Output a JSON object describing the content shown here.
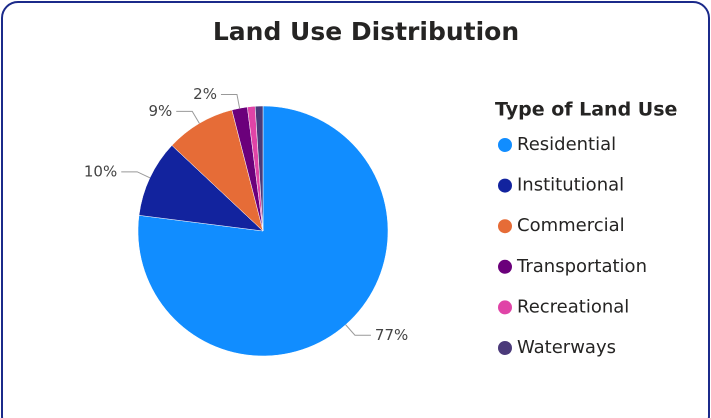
{
  "chart_data": {
    "type": "pie",
    "title": "Land Use Distribution",
    "legend_title": "Type of Land Use",
    "categories": [
      "Residential",
      "Institutional",
      "Commercial",
      "Transportation",
      "Recreational",
      "Waterways"
    ],
    "values": [
      77,
      10,
      9,
      2,
      1,
      1
    ],
    "value_labels": [
      "77%",
      "10%",
      "9%",
      "2%",
      null,
      null
    ],
    "colors": [
      "#118DFF",
      "#12239E",
      "#E66C37",
      "#6B007B",
      "#E044A7",
      "#4B3A7A"
    ]
  }
}
